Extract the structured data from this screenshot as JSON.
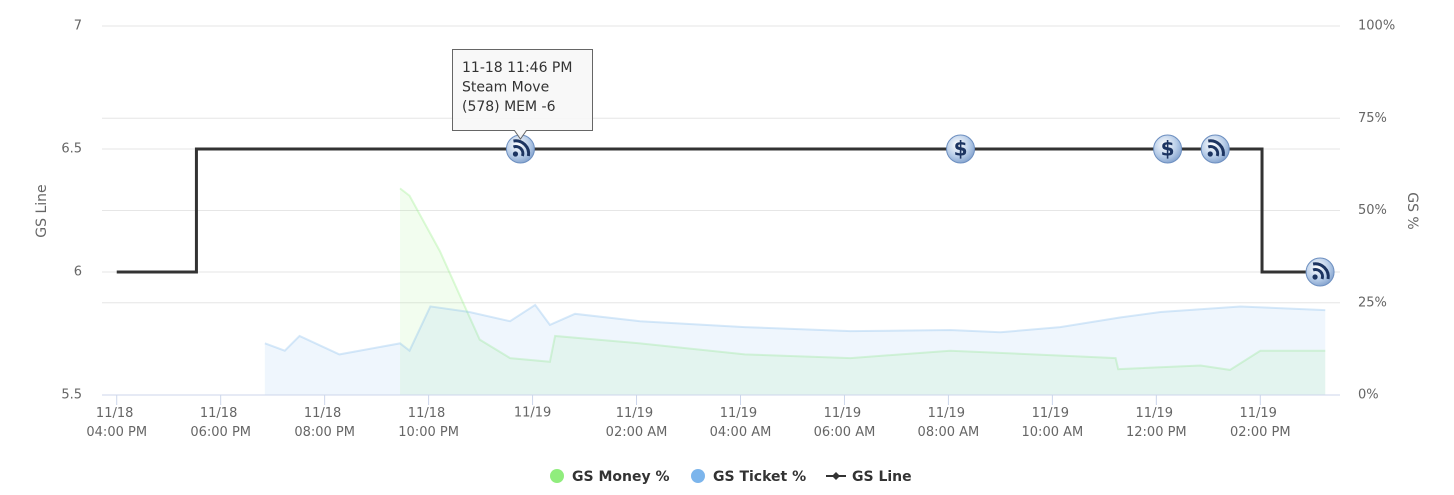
{
  "chart_data": {
    "type": "line",
    "y_title": "GS Line",
    "y2_title": "GS %",
    "ylim": [
      5.5,
      7
    ],
    "yticks": [
      5.5,
      6,
      6.5,
      7
    ],
    "y2lim": [
      0,
      100
    ],
    "y2ticks": [
      {
        "value": 0,
        "label": "0%"
      },
      {
        "value": 25,
        "label": "25%"
      },
      {
        "value": 50,
        "label": "50%"
      },
      {
        "value": 75,
        "label": "75%"
      },
      {
        "value": 100,
        "label": "100%"
      }
    ],
    "xlim": [
      "11/18 03:43 PM",
      "11/19 03:32 PM"
    ],
    "xticks": [
      {
        "value": "11/18 04:00 PM",
        "label": "11/18 04:00 PM"
      },
      {
        "value": "11/18 06:00 PM",
        "label": "11/18 06:00 PM"
      },
      {
        "value": "11/18 08:00 PM",
        "label": "11/18 08:00 PM"
      },
      {
        "value": "11/18 10:00 PM",
        "label": "11/18 10:00 PM"
      },
      {
        "value": "11/19 12:00 AM",
        "label": "11/19"
      },
      {
        "value": "11/19 02:00 AM",
        "label": "11/19 02:00 AM"
      },
      {
        "value": "11/19 04:00 AM",
        "label": "11/19 04:00 AM"
      },
      {
        "value": "11/19 06:00 AM",
        "label": "11/19 06:00 AM"
      },
      {
        "value": "11/19 08:00 AM",
        "label": "11/19 08:00 AM"
      },
      {
        "value": "11/19 10:00 AM",
        "label": "11/19 10:00 AM"
      },
      {
        "value": "11/19 12:00 PM",
        "label": "11/19 12:00 PM"
      },
      {
        "value": "11/19 02:00 PM",
        "label": "11/19 02:00 PM"
      }
    ],
    "grid": true,
    "series": [
      {
        "name": "GS Money %",
        "color": "#90ed7d",
        "axis": "y2",
        "kind": "area",
        "x": [
          "11/18 09:27 PM",
          "11/18 09:38 PM",
          "11/18 10:13 PM",
          "11/18 10:59 PM",
          "11/18 11:34 PM",
          "11/19 12:20 AM",
          "11/19 12:26 AM",
          "11/19 02:04 AM",
          "11/19 04:05 AM",
          "11/19 06:07 AM",
          "11/19 08:02 AM",
          "11/19 10:26 AM",
          "11/19 11:13 AM",
          "11/19 11:16 AM",
          "11/19 12:51 PM",
          "11/19 01:25 PM",
          "11/19 02:00 PM",
          "11/19 03:15 PM"
        ],
        "values": [
          56,
          54,
          39,
          15,
          10,
          9,
          16,
          14,
          11,
          10,
          12,
          10.5,
          10,
          7,
          8,
          6.8,
          12,
          12
        ]
      },
      {
        "name": "GS Ticket %",
        "color": "#7cb5ec",
        "axis": "y2",
        "kind": "area",
        "x": [
          "11/18 06:51 PM",
          "11/18 07:14 PM",
          "11/18 07:31 PM",
          "11/18 08:17 PM",
          "11/18 09:27 PM",
          "11/18 09:38 PM",
          "11/18 10:02 PM",
          "11/18 10:47 PM",
          "11/18 11:34 PM",
          "11/19 12:03 AM",
          "11/19 12:20 AM",
          "11/19 12:49 AM",
          "11/19 02:04 AM",
          "11/19 04:05 AM",
          "11/19 06:07 AM",
          "11/19 08:02 AM",
          "11/19 09:00 AM",
          "11/19 10:09 AM",
          "11/19 11:18 AM",
          "11/19 12:05 PM",
          "11/19 01:37 PM",
          "11/19 03:15 PM"
        ],
        "values": [
          14,
          12,
          16,
          11,
          14,
          12,
          24,
          22.5,
          20,
          24.4,
          19,
          22,
          20,
          18.4,
          17.3,
          17.6,
          17,
          18.4,
          21,
          22.5,
          24,
          23
        ]
      },
      {
        "name": "GS Line",
        "color": "#333333",
        "kind": "line",
        "x": [
          "11/18 04:00 PM",
          "11/18 05:32 PM",
          "11/18 05:32 PM",
          "11/19 02:02 PM",
          "11/19 02:02 PM",
          "11/19 03:09 PM"
        ],
        "values": [
          6,
          6,
          6.5,
          6.5,
          6,
          6
        ]
      }
    ],
    "markers": [
      {
        "x": "11/18 11:46 PM",
        "value": 6.5,
        "symbol": "rss"
      },
      {
        "x": "11/19 08:14 AM",
        "value": 6.5,
        "symbol": "$"
      },
      {
        "x": "11/19 12:13 PM",
        "value": 6.5,
        "symbol": "$"
      },
      {
        "x": "11/19 01:08 PM",
        "value": 6.5,
        "symbol": "rss"
      },
      {
        "x": "11/19 03:09 PM",
        "value": 6,
        "symbol": "rss"
      }
    ],
    "tooltip": [
      "11-18 11:46 PM",
      "Steam Move",
      "(578) MEM -6"
    ]
  }
}
